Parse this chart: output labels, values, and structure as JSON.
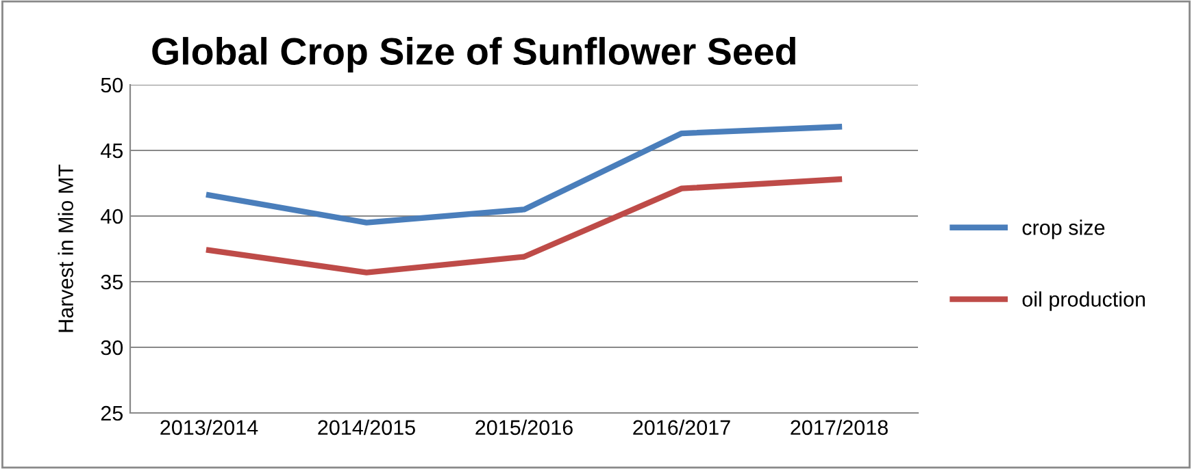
{
  "chart_data": {
    "type": "line",
    "title": "Global Crop Size of Sunflower Seed",
    "ylabel": "Harvest in Mio MT",
    "categories": [
      "2013/2014",
      "2014/2015",
      "2015/2016",
      "2016/2017",
      "2017/2018"
    ],
    "series": [
      {
        "name": "crop size",
        "color": "#4a7ebb",
        "values": [
          41.6,
          39.5,
          40.5,
          46.3,
          46.8
        ]
      },
      {
        "name": "oil production",
        "color": "#be4b48",
        "values": [
          37.4,
          35.7,
          36.9,
          42.1,
          42.8
        ]
      }
    ],
    "ylim": [
      25,
      50
    ],
    "yticks": [
      25,
      30,
      35,
      40,
      45,
      50
    ],
    "grid": "y",
    "legend": "right",
    "marker": "none",
    "line_style": "solid"
  }
}
